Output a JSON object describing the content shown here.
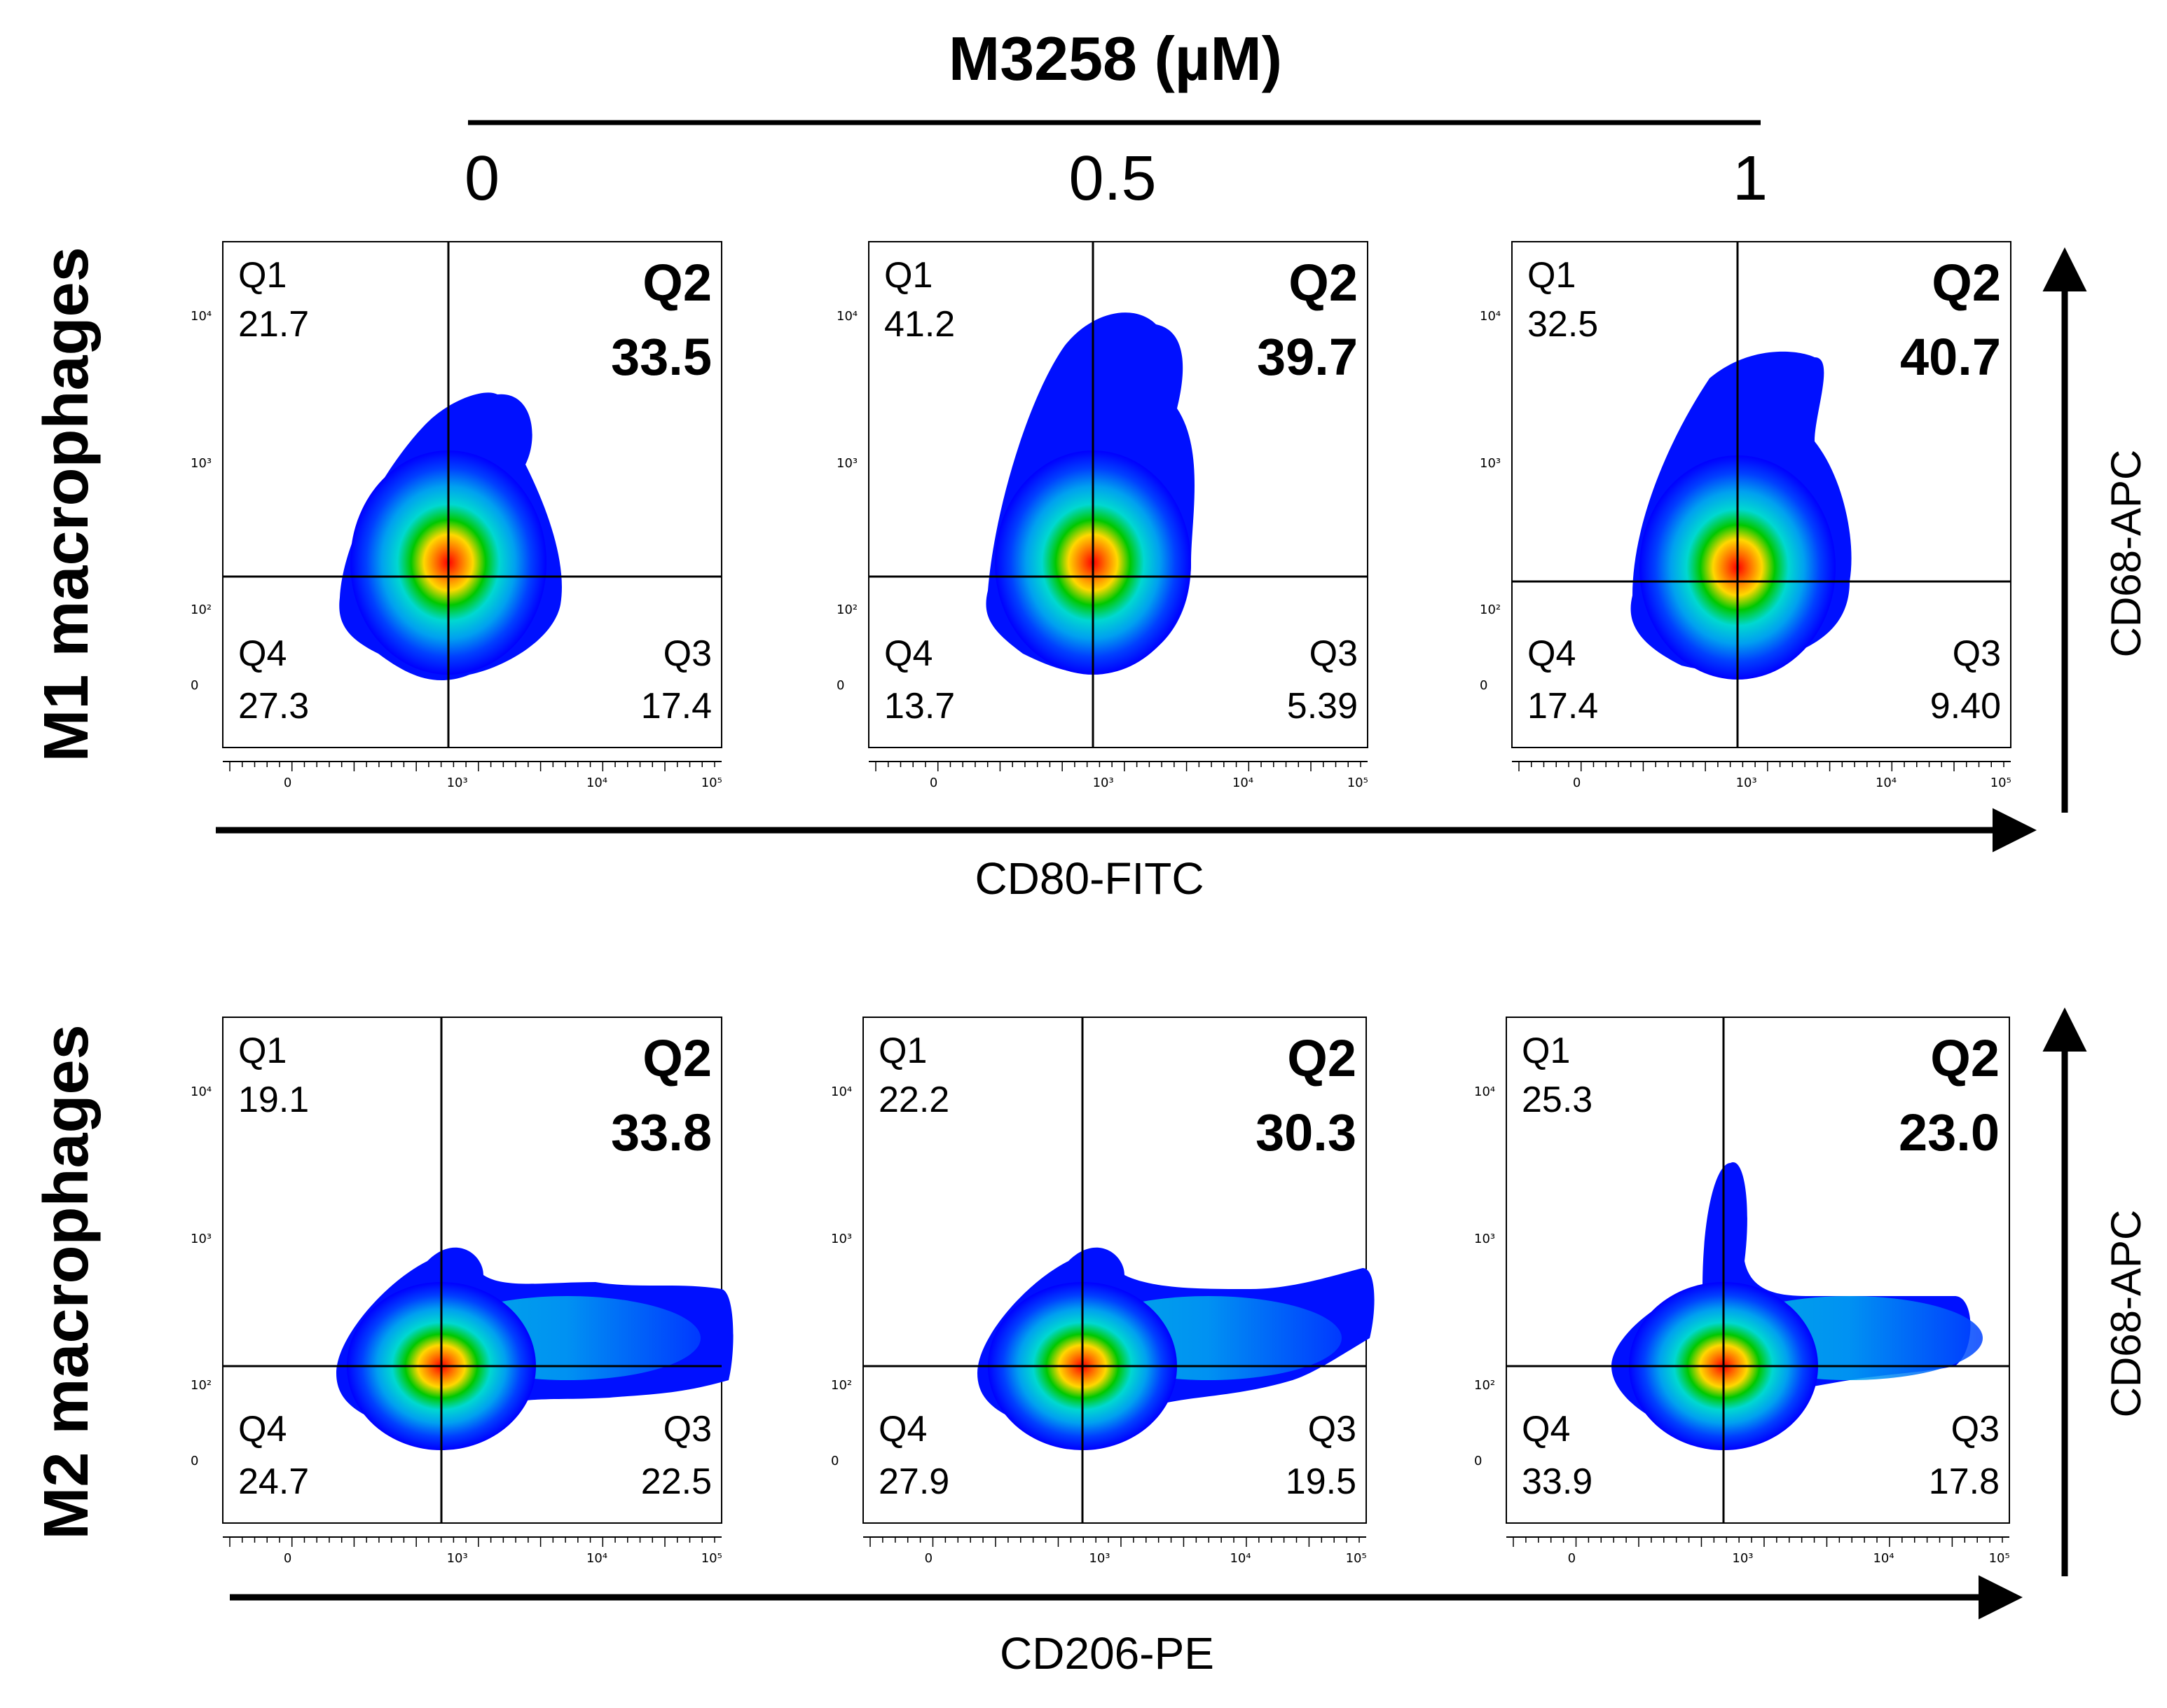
{
  "figure": {
    "title": "M3258 (µM)",
    "doses": [
      "0",
      "0.5",
      "1"
    ],
    "rows": [
      {
        "label": "M1 macrophages",
        "x_axis_label": "CD80-FITC",
        "y_axis_label": "CD68-APC"
      },
      {
        "label": "M2 macrophages",
        "x_axis_label": "CD206-PE",
        "y_axis_label": "CD68-APC"
      }
    ],
    "x_tick_labels": [
      "0",
      "10³",
      "10⁴",
      "10⁵"
    ],
    "y_tick_labels": [
      "0",
      "10²",
      "10³",
      "10⁴"
    ]
  },
  "chart_data": [
    {
      "type": "scatter",
      "subtype": "density-plot-quadrant",
      "row": "M1 macrophages",
      "dose": "0",
      "xlabel": "CD80-FITC",
      "ylabel": "CD68-APC",
      "quadrants": {
        "Q1": {
          "label": "Q1",
          "value": "21.7"
        },
        "Q2": {
          "label": "Q2",
          "value": "33.5"
        },
        "Q3": {
          "label": "Q3",
          "value": "17.4"
        },
        "Q4": {
          "label": "Q4",
          "value": "27.3"
        }
      }
    },
    {
      "type": "scatter",
      "subtype": "density-plot-quadrant",
      "row": "M1 macrophages",
      "dose": "0.5",
      "xlabel": "CD80-FITC",
      "ylabel": "CD68-APC",
      "quadrants": {
        "Q1": {
          "label": "Q1",
          "value": "41.2"
        },
        "Q2": {
          "label": "Q2",
          "value": "39.7"
        },
        "Q3": {
          "label": "Q3",
          "value": "5.39"
        },
        "Q4": {
          "label": "Q4",
          "value": "13.7"
        }
      }
    },
    {
      "type": "scatter",
      "subtype": "density-plot-quadrant",
      "row": "M1 macrophages",
      "dose": "1",
      "xlabel": "CD80-FITC",
      "ylabel": "CD68-APC",
      "quadrants": {
        "Q1": {
          "label": "Q1",
          "value": "32.5"
        },
        "Q2": {
          "label": "Q2",
          "value": "40.7"
        },
        "Q3": {
          "label": "Q3",
          "value": "9.40"
        },
        "Q4": {
          "label": "Q4",
          "value": "17.4"
        }
      }
    },
    {
      "type": "scatter",
      "subtype": "density-plot-quadrant",
      "row": "M2 macrophages",
      "dose": "0",
      "xlabel": "CD206-PE",
      "ylabel": "CD68-APC",
      "quadrants": {
        "Q1": {
          "label": "Q1",
          "value": "19.1"
        },
        "Q2": {
          "label": "Q2",
          "value": "33.8"
        },
        "Q3": {
          "label": "Q3",
          "value": "22.5"
        },
        "Q4": {
          "label": "Q4",
          "value": "24.7"
        }
      }
    },
    {
      "type": "scatter",
      "subtype": "density-plot-quadrant",
      "row": "M2 macrophages",
      "dose": "0.5",
      "xlabel": "CD206-PE",
      "ylabel": "CD68-APC",
      "quadrants": {
        "Q1": {
          "label": "Q1",
          "value": "22.2"
        },
        "Q2": {
          "label": "Q2",
          "value": "30.3"
        },
        "Q3": {
          "label": "Q3",
          "value": "19.5"
        },
        "Q4": {
          "label": "Q4",
          "value": "27.9"
        }
      }
    },
    {
      "type": "scatter",
      "subtype": "density-plot-quadrant",
      "row": "M2 macrophages",
      "dose": "1",
      "xlabel": "CD206-PE",
      "ylabel": "CD68-APC",
      "quadrants": {
        "Q1": {
          "label": "Q1",
          "value": "25.3"
        },
        "Q2": {
          "label": "Q2",
          "value": "23.0"
        },
        "Q3": {
          "label": "Q3",
          "value": "17.8"
        },
        "Q4": {
          "label": "Q4",
          "value": "33.9"
        }
      }
    }
  ]
}
